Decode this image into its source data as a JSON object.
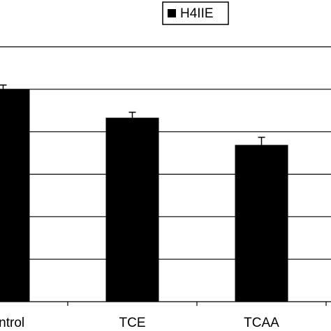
{
  "chart_data": {
    "type": "bar",
    "categories": [
      "Control",
      "TCE",
      "TCAA"
    ],
    "series": [
      {
        "name": "H4IIE",
        "color": "#000000",
        "values": [
          5.0,
          4.33,
          3.69
        ],
        "errors": [
          0.1,
          0.13,
          0.18
        ]
      }
    ],
    "ylim": [
      0,
      6
    ],
    "yticks": [
      0,
      1,
      2,
      3,
      4,
      5,
      6
    ],
    "grid": true,
    "legend": "top"
  }
}
